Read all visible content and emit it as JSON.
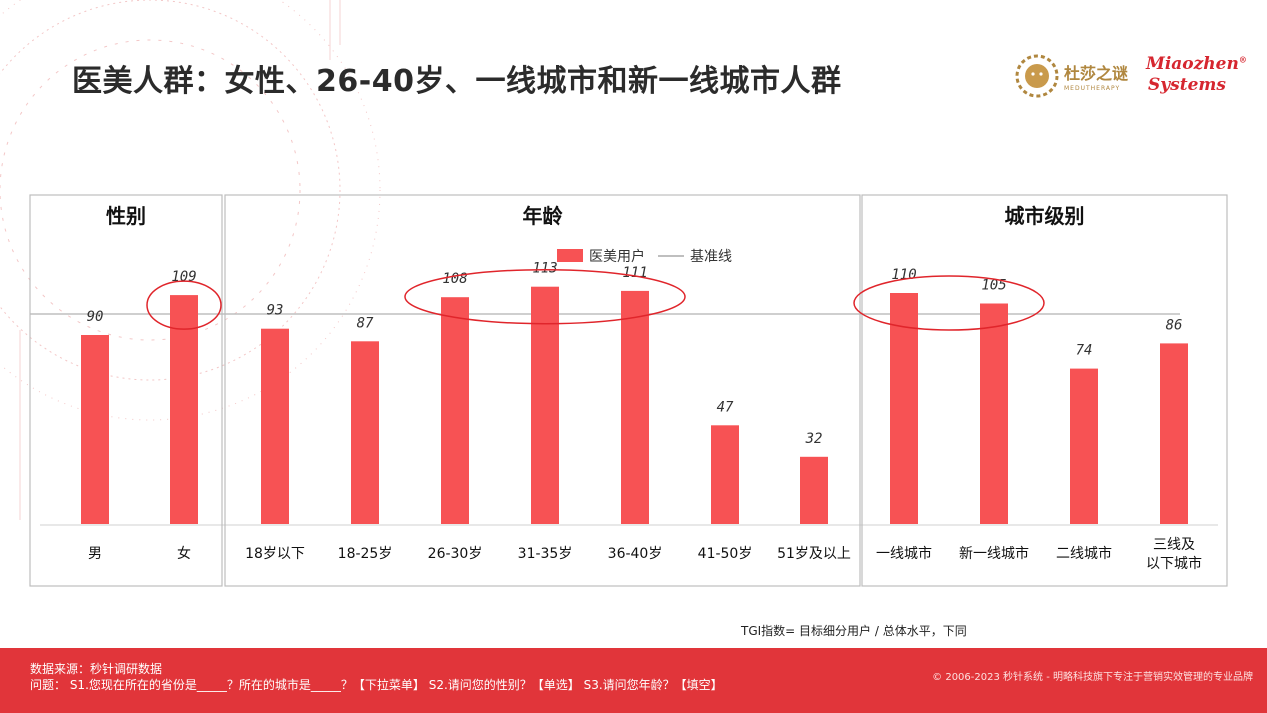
{
  "title": "医美人群：女性、26-40岁、一线城市和新一线城市人群",
  "logos": {
    "dusha_cn": "杜莎之谜",
    "dusha_en": "MEDUTHERAPY",
    "mz_line1": "Miaozhen",
    "mz_line2": "Systems",
    "mz_reg": "®"
  },
  "colors": {
    "bar": "#f75254",
    "accent": "#e1353a",
    "circle": "#e0252b",
    "panel_border": "#bdbdbd",
    "baseline": "#bfbfbf"
  },
  "chart_data": {
    "type": "bar",
    "legend": [
      "医美用户",
      "基准线"
    ],
    "legend_position": "top-center",
    "baseline": 100,
    "ylim": [
      0,
      130
    ],
    "grid": false,
    "panels": [
      {
        "title": "性别",
        "categories": [
          "男",
          "女"
        ],
        "values": [
          90,
          109
        ],
        "highlight": [
          1
        ]
      },
      {
        "title": "年龄",
        "categories": [
          "18岁以下",
          "18-25岁",
          "26-30岁",
          "31-35岁",
          "36-40岁",
          "41-50岁",
          "51岁及以上"
        ],
        "values": [
          93,
          87,
          108,
          113,
          111,
          47,
          32
        ],
        "highlight": [
          2,
          3,
          4
        ]
      },
      {
        "title": "城市级别",
        "categories": [
          "一线城市",
          "新一线城市",
          "二线城市",
          "三线及以下城市"
        ],
        "values": [
          110,
          105,
          74,
          86
        ],
        "highlight": [
          0,
          1
        ]
      }
    ]
  },
  "note": "TGI指数= 目标细分用户 / 总体水平，下同",
  "footer": {
    "source": "数据来源：秒针调研数据",
    "question": "问题： S1.您现在所在的省份是_____？所在的城市是_____？【下拉菜单】 S2.请问您的性别？【单选】 S3.请问您年龄？【填空】",
    "copyright": "© 2006-2023 秒针系统 - 明略科技旗下专注于营销实效管理的专业品牌"
  }
}
